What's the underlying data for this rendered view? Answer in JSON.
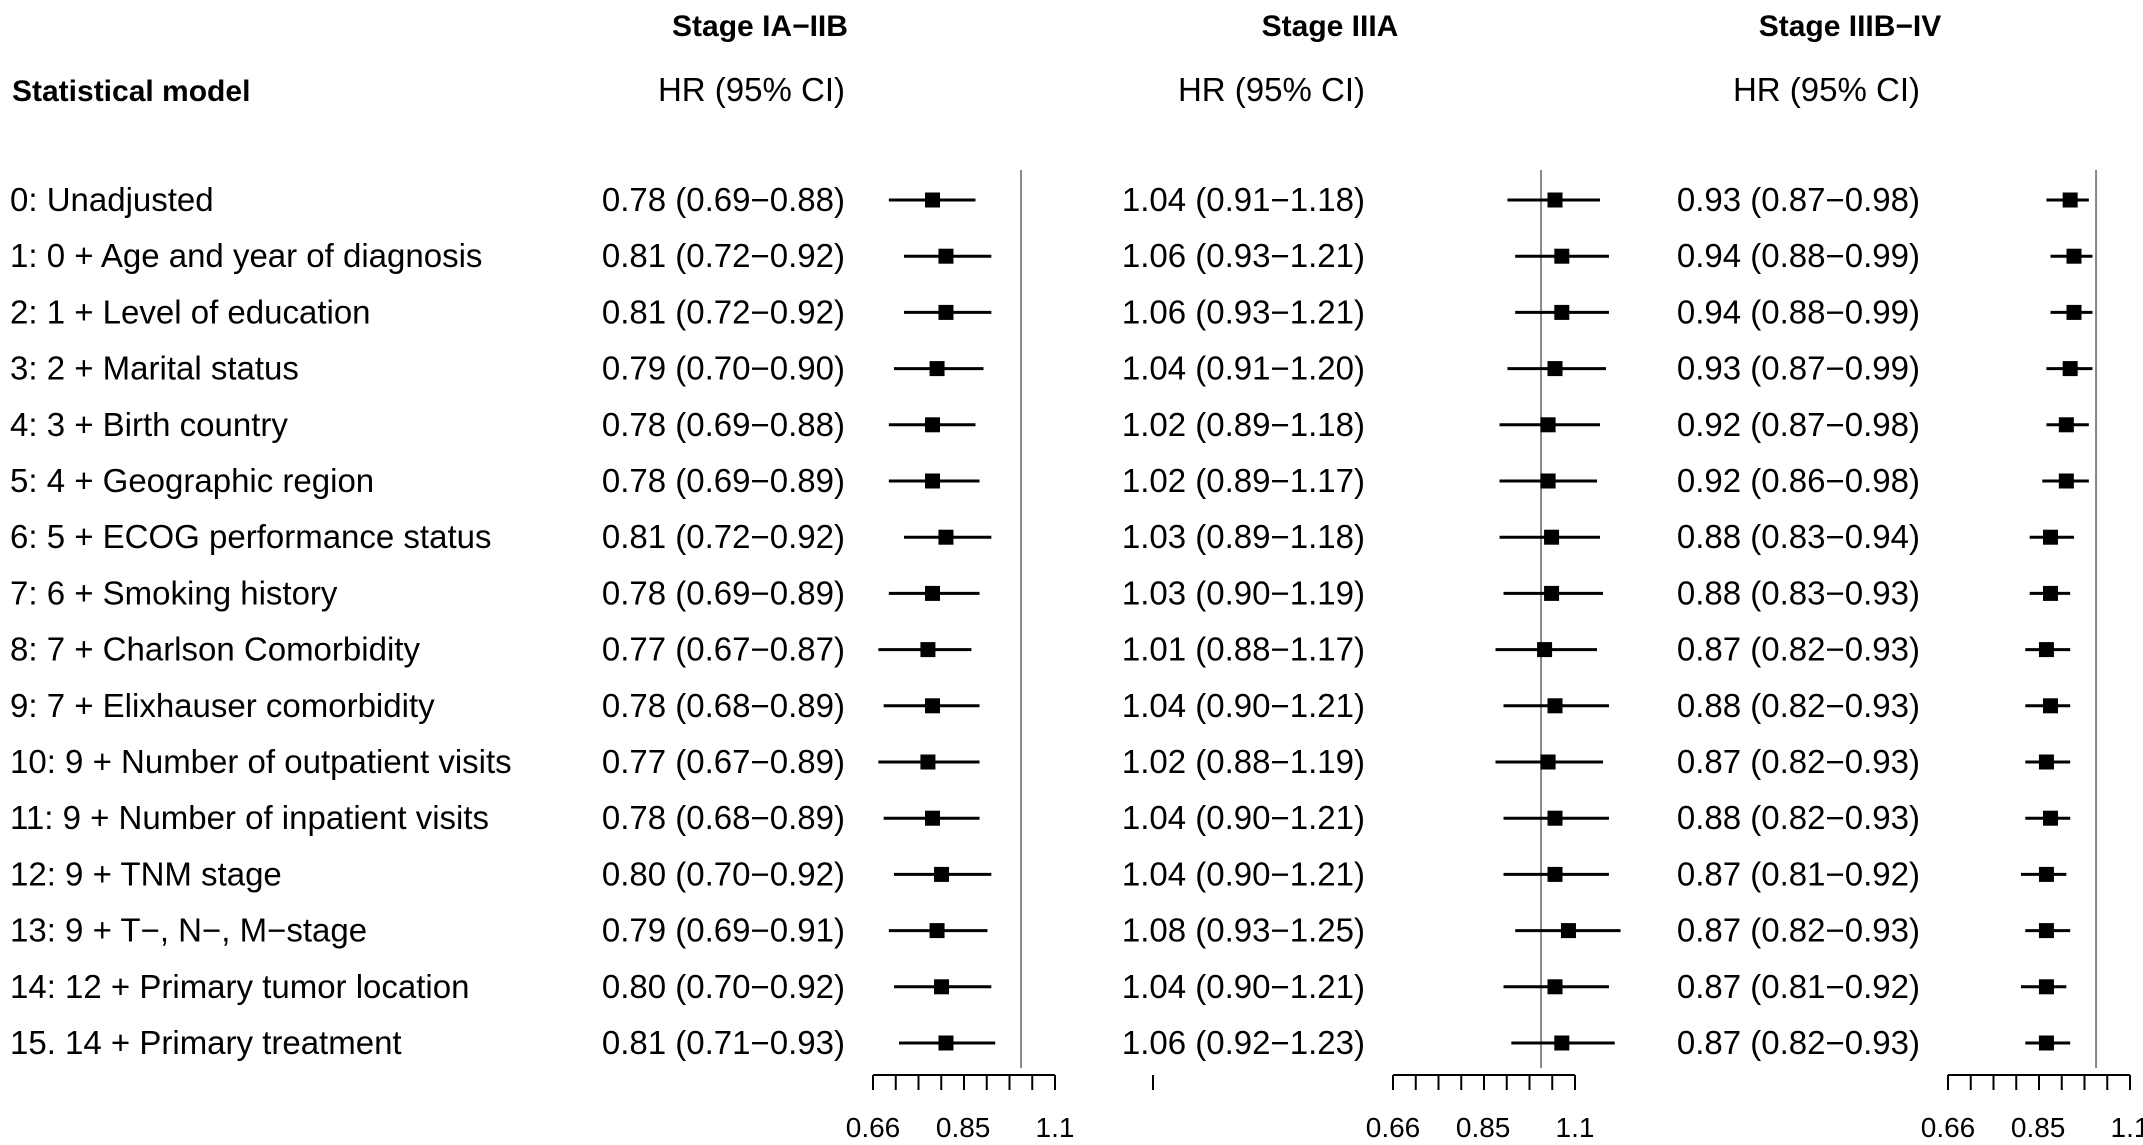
{
  "chart_data": {
    "type": "forest",
    "row_header": "Statistical model",
    "ci_header": "HR (95% CI)",
    "x_ticks": [
      0.66,
      0.85,
      1.1
    ],
    "x_tick_labels": [
      "0.66",
      "0.85",
      "1.1"
    ],
    "reference_line": 1.0,
    "models": [
      "0: Unadjusted",
      "1: 0 + Age and year of diagnosis",
      "2: 1 + Level of education",
      "3: 2 + Marital status",
      "4: 3 + Birth country",
      "5: 4 + Geographic region",
      "6: 5 + ECOG performance status",
      "7: 6 + Smoking history",
      "8: 7 + Charlson Comorbidity",
      "9: 7 + Elixhauser comorbidity",
      "10: 9 + Number of outpatient visits",
      "11: 9 + Number of inpatient visits",
      "12: 9 + TNM stage",
      "13: 9 + T−, N−, M−stage",
      "14: 12 + Primary tumor location",
      "15. 14 + Primary treatment"
    ],
    "panels": [
      {
        "title": "Stage IA−IIB",
        "labels": [
          "0.78 (0.69−0.88)",
          "0.81 (0.72−0.92)",
          "0.81 (0.72−0.92)",
          "0.79 (0.70−0.90)",
          "0.78 (0.69−0.88)",
          "0.78 (0.69−0.89)",
          "0.81 (0.72−0.92)",
          "0.78 (0.69−0.89)",
          "0.77 (0.67−0.87)",
          "0.78 (0.68−0.89)",
          "0.77 (0.67−0.89)",
          "0.78 (0.68−0.89)",
          "0.80 (0.70−0.92)",
          "0.79 (0.69−0.91)",
          "0.80 (0.70−0.92)",
          "0.81 (0.71−0.93)"
        ],
        "hr": [
          0.78,
          0.81,
          0.81,
          0.79,
          0.78,
          0.78,
          0.81,
          0.78,
          0.77,
          0.78,
          0.77,
          0.78,
          0.8,
          0.79,
          0.8,
          0.81
        ],
        "lower": [
          0.69,
          0.72,
          0.72,
          0.7,
          0.69,
          0.69,
          0.72,
          0.69,
          0.67,
          0.68,
          0.67,
          0.68,
          0.7,
          0.69,
          0.7,
          0.71
        ],
        "upper": [
          0.88,
          0.92,
          0.92,
          0.9,
          0.88,
          0.89,
          0.92,
          0.89,
          0.87,
          0.89,
          0.89,
          0.89,
          0.92,
          0.91,
          0.92,
          0.93
        ]
      },
      {
        "title": "Stage IIIA",
        "labels": [
          "1.04 (0.91−1.18)",
          "1.06 (0.93−1.21)",
          "1.06 (0.93−1.21)",
          "1.04 (0.91−1.20)",
          "1.02 (0.89−1.18)",
          "1.02 (0.89−1.17)",
          "1.03 (0.89−1.18)",
          "1.03 (0.90−1.19)",
          "1.01 (0.88−1.17)",
          "1.04 (0.90−1.21)",
          "1.02 (0.88−1.19)",
          "1.04 (0.90−1.21)",
          "1.04 (0.90−1.21)",
          "1.08 (0.93−1.25)",
          "1.04 (0.90−1.21)",
          "1.06 (0.92−1.23)"
        ],
        "hr": [
          1.04,
          1.06,
          1.06,
          1.04,
          1.02,
          1.02,
          1.03,
          1.03,
          1.01,
          1.04,
          1.02,
          1.04,
          1.04,
          1.08,
          1.04,
          1.06
        ],
        "lower": [
          0.91,
          0.93,
          0.93,
          0.91,
          0.89,
          0.89,
          0.89,
          0.9,
          0.88,
          0.9,
          0.88,
          0.9,
          0.9,
          0.93,
          0.9,
          0.92
        ],
        "upper": [
          1.18,
          1.21,
          1.21,
          1.2,
          1.18,
          1.17,
          1.18,
          1.19,
          1.17,
          1.21,
          1.19,
          1.21,
          1.21,
          1.25,
          1.21,
          1.23
        ]
      },
      {
        "title": "Stage IIIB−IV",
        "labels": [
          "0.93 (0.87−0.98)",
          "0.94 (0.88−0.99)",
          "0.94 (0.88−0.99)",
          "0.93 (0.87−0.99)",
          "0.92 (0.87−0.98)",
          "0.92 (0.86−0.98)",
          "0.88 (0.83−0.94)",
          "0.88 (0.83−0.93)",
          "0.87 (0.82−0.93)",
          "0.88 (0.82−0.93)",
          "0.87 (0.82−0.93)",
          "0.88 (0.82−0.93)",
          "0.87 (0.81−0.92)",
          "0.87 (0.82−0.93)",
          "0.87 (0.81−0.92)",
          "0.87 (0.82−0.93)"
        ],
        "hr": [
          0.93,
          0.94,
          0.94,
          0.93,
          0.92,
          0.92,
          0.88,
          0.88,
          0.87,
          0.88,
          0.87,
          0.88,
          0.87,
          0.87,
          0.87,
          0.87
        ],
        "lower": [
          0.87,
          0.88,
          0.88,
          0.87,
          0.87,
          0.86,
          0.83,
          0.83,
          0.82,
          0.82,
          0.82,
          0.82,
          0.81,
          0.82,
          0.81,
          0.82
        ],
        "upper": [
          0.98,
          0.99,
          0.99,
          0.99,
          0.98,
          0.98,
          0.94,
          0.93,
          0.93,
          0.93,
          0.93,
          0.93,
          0.92,
          0.93,
          0.92,
          0.93
        ]
      }
    ],
    "colors": {
      "marker": "#000000",
      "ci_line": "#000000",
      "reference_line": "#888888",
      "axis": "#000000"
    }
  }
}
